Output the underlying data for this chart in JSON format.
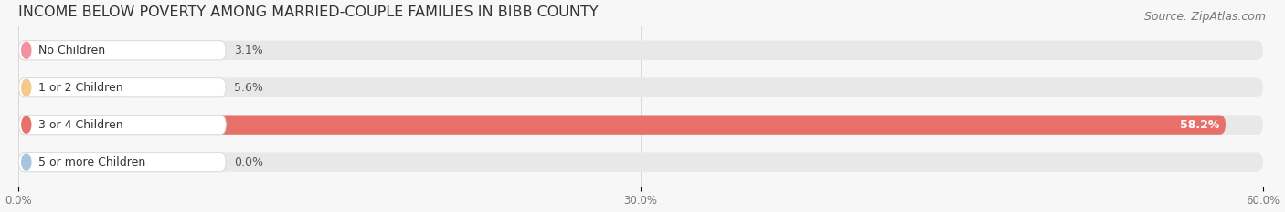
{
  "title": "INCOME BELOW POVERTY AMONG MARRIED-COUPLE FAMILIES IN BIBB COUNTY",
  "source": "Source: ZipAtlas.com",
  "categories": [
    "No Children",
    "1 or 2 Children",
    "3 or 4 Children",
    "5 or more Children"
  ],
  "values": [
    3.1,
    5.6,
    58.2,
    0.0
  ],
  "bar_colors": [
    "#f2919f",
    "#f5c98a",
    "#e8706a",
    "#a8c4e0"
  ],
  "label_accent_colors": [
    "#f2919f",
    "#f5c98a",
    "#e8706a",
    "#a8c4e0"
  ],
  "xlim": [
    0,
    60
  ],
  "xticks": [
    0.0,
    30.0,
    60.0
  ],
  "xtick_labels": [
    "0.0%",
    "30.0%",
    "60.0%"
  ],
  "title_fontsize": 11.5,
  "bar_label_fontsize": 9,
  "value_label_fontsize": 9,
  "tick_fontsize": 8.5,
  "source_fontsize": 9,
  "background_color": "#f7f7f7",
  "bar_background_color": "#e8e8e8",
  "label_box_color": "#ffffff"
}
